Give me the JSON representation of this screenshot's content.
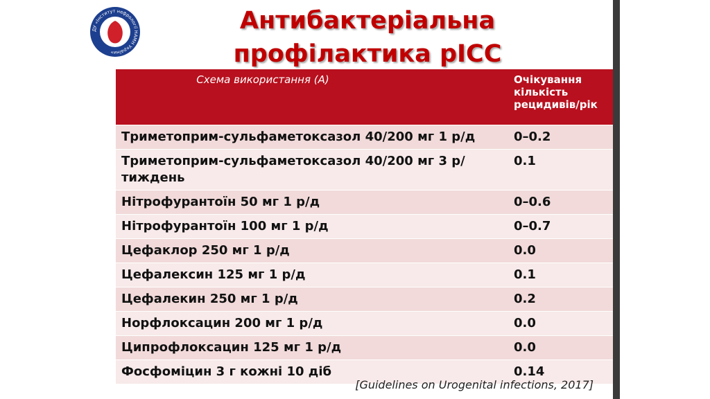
{
  "logo": {
    "text": "ДУ «Інститут нефрології НАМН України»"
  },
  "title": {
    "lines": [
      "Антибактеріальна",
      "профілактика рІСС"
    ]
  },
  "table": {
    "header": [
      "Схема використання (А)",
      "Очікування кількість рецидивів/рік"
    ],
    "rows": [
      [
        "Триметоприм-сульфаметоксазол 40/200 мг 1 р/д",
        "0–0.2"
      ],
      [
        "Триметоприм-сульфаметоксазол 40/200 мг 3 р/тиждень",
        "0.1"
      ],
      [
        "Нітрофурантоїн 50 мг 1 р/д",
        "0–0.6"
      ],
      [
        "Нітрофурантоїн 100 мг 1 р/д",
        "0–0.7"
      ],
      [
        "Цефаклор 250 мг 1 р/д",
        "0.0"
      ],
      [
        "Цефалексин 125 мг 1 р/д",
        "0.1"
      ],
      [
        "Цефалекин 250 мг 1 р/д",
        "0.2"
      ],
      [
        "Норфлоксацин 200 мг 1 р/д",
        "0.0"
      ],
      [
        "Ципрофлоксацин 125 мг 1 р/д",
        "0.0"
      ],
      [
        "Фосфоміцин 3 г кожні 10 діб",
        "0.14"
      ]
    ]
  },
  "citation": "[Guidelines on Urogenital infections, 2017]"
}
